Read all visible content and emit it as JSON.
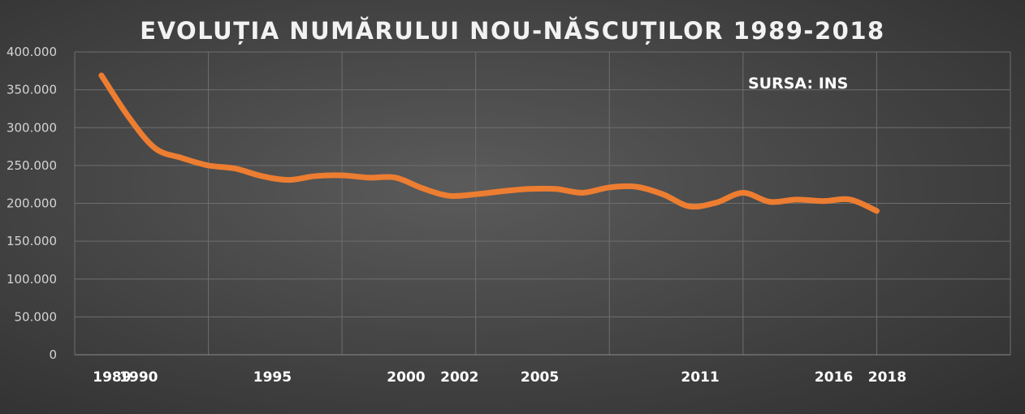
{
  "chart_data": {
    "type": "line",
    "title": "EVOLUȚIA NUMĂRULUI NOU-NĂSCUȚILOR 1989-2018",
    "annotation": "SURSA: INS",
    "ylim": [
      0,
      400000
    ],
    "yticks": [
      0,
      50000,
      100000,
      150000,
      200000,
      250000,
      300000,
      350000,
      400000
    ],
    "ytick_labels": [
      "0",
      "50.000",
      "100.000",
      "150.000",
      "200.000",
      "250.000",
      "300.000",
      "350.000",
      "400.000"
    ],
    "xlim": [
      1988,
      2023
    ],
    "xtick_labels": [
      {
        "year": 1989,
        "label": "1989"
      },
      {
        "year": 1990,
        "label": "1990"
      },
      {
        "year": 1995,
        "label": "1995"
      },
      {
        "year": 2000,
        "label": "2000"
      },
      {
        "year": 2002,
        "label": "2002"
      },
      {
        "year": 2005,
        "label": "2005"
      },
      {
        "year": 2011,
        "label": "2011"
      },
      {
        "year": 2016,
        "label": "2016"
      },
      {
        "year": 2018,
        "label": "2018"
      }
    ],
    "grid": true,
    "series": [
      {
        "color": "#ed7d31",
        "x": [
          1989,
          1990,
          1991,
          1992,
          1993,
          1994,
          1995,
          1996,
          1997,
          1998,
          1999,
          2000,
          2001,
          2002,
          2003,
          2004,
          2005,
          2006,
          2007,
          2008,
          2009,
          2010,
          2011,
          2012,
          2013,
          2014,
          2015,
          2016,
          2017,
          2018
        ],
        "values": [
          369000,
          315000,
          273000,
          260000,
          250000,
          246000,
          236000,
          231000,
          236000,
          237000,
          234000,
          234000,
          220000,
          210000,
          212000,
          216000,
          219000,
          219000,
          214000,
          221000,
          222000,
          212000,
          196000,
          201000,
          214000,
          202000,
          205000,
          203000,
          205000,
          190000
        ]
      }
    ]
  }
}
